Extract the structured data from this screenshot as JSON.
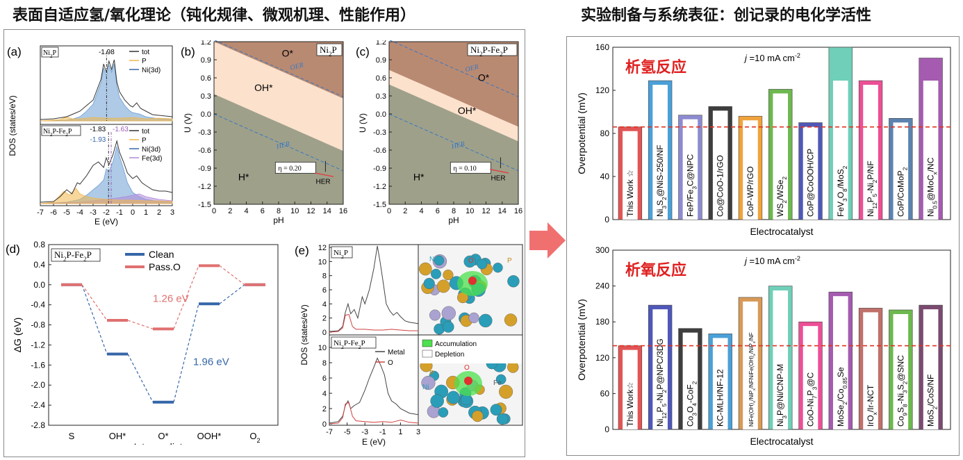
{
  "headers": {
    "left": "表面自适应氢/氧化理论（钝化规律、微观机理、性能作用）",
    "right": "实验制备与系统表征：创记录的电化学活性"
  },
  "colors": {
    "arrow": "#f07070",
    "hydrogen": "#e02020",
    "oxygen": "#e02020"
  },
  "panel_a": {
    "letter": "(a)",
    "ylabel": "DOS (states/eV)",
    "xlabel": "E (eV)",
    "xticks": [
      "-7",
      "-6",
      "-5",
      "-4",
      "-3",
      "-2",
      "-1",
      "0",
      "1",
      "2",
      "3"
    ],
    "top": {
      "tag_base": "Ni",
      "tag_sub": "2",
      "tag_tail": "P",
      "center": "-1.98",
      "legend": [
        "tot",
        "P",
        "Ni(3d)"
      ]
    },
    "bottom": {
      "tag": "Ni2P-Fe2P",
      "center_a": "-1.83",
      "center_b": "-1.63",
      "center_c": "-1.93",
      "legend": [
        "tot",
        "P",
        "Ni(3d)",
        "Fe(3d)"
      ]
    }
  },
  "panel_b": {
    "letter": "(b)",
    "tag": "Ni2P",
    "ylabel": "U (V)",
    "xlabel": "pH",
    "yticks": [
      "1.2",
      "0.9",
      "0.6",
      "0.3",
      "0.0",
      "-0.3",
      "-0.6",
      "-0.9",
      "-1.2",
      "-1.5"
    ],
    "xticks": [
      "0",
      "2",
      "4",
      "6",
      "8",
      "10",
      "12",
      "14",
      "16"
    ],
    "regions": [
      "O*",
      "OH*",
      "H*"
    ],
    "lines": [
      "OER",
      "HER"
    ],
    "eta": "η = 0.20",
    "her": "HER"
  },
  "panel_c": {
    "letter": "(c)",
    "tag": "Ni2P-Fe2P",
    "ylabel": "U (V)",
    "xlabel": "pH",
    "yticks": [
      "1.2",
      "0.9",
      "0.6",
      "0.3",
      "0.0",
      "-0.3",
      "-0.6",
      "-0.9",
      "-1.2",
      "-1.5"
    ],
    "xticks": [
      "0",
      "2",
      "4",
      "6",
      "8",
      "10",
      "12",
      "14",
      "16"
    ],
    "regions": [
      "O*",
      "OH*",
      "H*"
    ],
    "lines": [
      "OER",
      "HER"
    ],
    "eta": "η = 0.10",
    "her": "HER"
  },
  "panel_d": {
    "letter": "(d)",
    "tag": "Ni2P-Fe2P",
    "ylabel": "ΔG (eV)",
    "xlabel": "Intermediates",
    "legend": [
      "Clean",
      "Pass.O"
    ],
    "note_red": "1.26 eV",
    "note_blue": "1.96 eV",
    "chart_data": {
      "type": "line",
      "categories": [
        "S",
        "OH*",
        "O*",
        "OOH*",
        "O2"
      ],
      "series": [
        {
          "name": "Clean",
          "values": [
            0.0,
            -1.38,
            -2.34,
            -0.38,
            0.0
          ],
          "color": "#3566a8"
        },
        {
          "name": "Pass.O",
          "values": [
            0.0,
            -0.71,
            -0.88,
            0.38,
            0.0
          ],
          "color": "#e07070"
        }
      ],
      "ylim": [
        -2.8,
        0.8
      ],
      "yticks": [
        "0.8",
        "0.4",
        "0.0",
        "-0.4",
        "-0.8",
        "-1.2",
        "-1.6",
        "-2.0",
        "-2.4",
        "-2.8"
      ]
    }
  },
  "panel_e": {
    "letter": "(e)",
    "ylabel": "DOS (states/eV)",
    "xlabel": "E (eV)",
    "top_tag": "Ni2P",
    "bottom_tag": "Ni2P-Fe2P",
    "yticks_top": [
      "12",
      "10",
      "8",
      "6",
      "4",
      "2",
      "0"
    ],
    "yticks_bottom": [
      "10",
      "8",
      "6",
      "4",
      "2",
      "0"
    ],
    "xticks": [
      "-7",
      "-5",
      "-3",
      "-1",
      "1",
      "3"
    ],
    "legend": [
      "Metal",
      "O"
    ],
    "charge_legend": [
      "Accumulation",
      "Depletion"
    ],
    "atoms_top": [
      "Ni",
      "O",
      "P"
    ],
    "atoms_bottom": [
      "P",
      "O",
      "Fe",
      "Ni"
    ]
  },
  "her_chart": {
    "title": "析氢反应",
    "condition_j": "j",
    "condition_rest": " =10 mA cm",
    "condition_sup": "-2",
    "chart_data": {
      "type": "bar",
      "ylabel": "Overpotential (mV)",
      "xlabel": "Electrocatalyst",
      "ylim": [
        0,
        160
      ],
      "yticks": [
        "0",
        "40",
        "80",
        "120",
        "160"
      ],
      "reference": 86,
      "categories": [
        "This Work ☆",
        "Ni3S2@NiS-250/NF",
        "FeP/Fe3C@NPC",
        "Co@CoO-1/rGO",
        "CoP-WP/rGO",
        "WS2/WSe2",
        "CoP@CoOOH/CP",
        "FeV3O8/MoS2",
        "Ni12P5-Ni2P/NF",
        "CoP/CoMoP2",
        "Ni0.5@MoCx/NC"
      ],
      "values": [
        86,
        129,
        97,
        105,
        96,
        121,
        90,
        160,
        129,
        94,
        150
      ],
      "colors": [
        "#e35454",
        "#4aa0d8",
        "#8c8ad0",
        "#3e3e3e",
        "#f0a33c",
        "#6db84f",
        "#4f58b8",
        "#6fcfb8",
        "#ec4f96",
        "#5c82b0",
        "#a55bb0"
      ]
    }
  },
  "oer_chart": {
    "title": "析氧反应",
    "condition_j": "j",
    "condition_rest": " =10 mA cm",
    "condition_sup": "-2",
    "chart_data": {
      "type": "bar",
      "ylabel": "Overpotential (mV)",
      "xlabel": "Electrocatalyst",
      "ylim": [
        0,
        300
      ],
      "yticks": [
        "0",
        "60",
        "120",
        "180",
        "240",
        "300"
      ],
      "reference": 140,
      "categories": [
        "This Work☆",
        "Ni12P5-Ni2P@NPC/3DG",
        "Co3O4-CoF2",
        "KC-MLH/NF-12",
        "NiFe(OH)x/NiPx/NFNiFe(OH)x/NiPx/NF",
        "Ni3P@Ni/CNP-M",
        "CoO-Ni7P3@C",
        "MoSe2/Co0.85Se",
        "IrOx/Ir-NCT",
        "Co9S8-Ni3S2@SNC",
        "MoS2/CoS/NF"
      ],
      "values": [
        140,
        208,
        169,
        160,
        221,
        240,
        180,
        230,
        203,
        200,
        208
      ],
      "colors": [
        "#e35454",
        "#4f58b8",
        "#3e3e3e",
        "#4aa0d8",
        "#d89a58",
        "#6fcfb8",
        "#ec4f96",
        "#a55bb0",
        "#c0706a",
        "#6db84f",
        "#7a4a70"
      ]
    }
  }
}
